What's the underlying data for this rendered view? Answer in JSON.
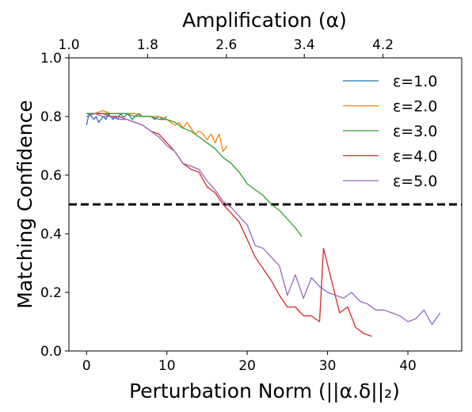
{
  "chart_data": {
    "type": "line",
    "xlabel": "Perturbation Norm (||α.δ||₂)",
    "ylabel": "Matching Confidence",
    "top_xlabel": "Amplification (α)",
    "xlim": [
      -2.2,
      46.7
    ],
    "ylim": [
      0.0,
      1.0
    ],
    "x_ticks": [
      0,
      10,
      20,
      30,
      40
    ],
    "x_tick_labels": [
      "0",
      "10",
      "20",
      "30",
      "40"
    ],
    "y_ticks": [
      0.0,
      0.2,
      0.4,
      0.6,
      0.8,
      1.0
    ],
    "y_tick_labels": [
      "0.0",
      "0.2",
      "0.4",
      "0.6",
      "0.8",
      "1.0"
    ],
    "top_ticks": [
      1.0,
      1.8,
      2.6,
      3.4,
      4.2
    ],
    "top_tick_labels": [
      "1.0",
      "1.8",
      "2.6",
      "3.4",
      "4.2"
    ],
    "top_tick_positions": [
      -2.2,
      7.6,
      17.4,
      27.1,
      36.9
    ],
    "grid": false,
    "legend_position": "top-right",
    "reference_line": {
      "y": 0.5,
      "style": "dashed",
      "color": "#000000"
    },
    "series": [
      {
        "name": "ε=1.0",
        "color": "#1f77b4",
        "x": [
          0,
          0.3,
          0.6,
          0.9,
          1.2,
          1.5,
          1.8,
          2.1,
          2.4,
          2.7,
          3.0,
          3.3,
          3.6,
          3.9,
          4.2,
          4.5,
          4.8,
          5.1,
          5.4,
          5.7,
          6.0,
          6.5,
          7.0,
          7.5,
          8.0,
          8.5,
          9.0,
          9.5,
          10.0
        ],
        "y": [
          0.77,
          0.81,
          0.8,
          0.79,
          0.8,
          0.78,
          0.79,
          0.8,
          0.79,
          0.81,
          0.8,
          0.79,
          0.8,
          0.79,
          0.81,
          0.8,
          0.8,
          0.81,
          0.8,
          0.79,
          0.8,
          0.81,
          0.8,
          0.8,
          0.8,
          0.79,
          0.8,
          0.79,
          0.8
        ]
      },
      {
        "name": "ε=2.0",
        "color": "#ff7f0e",
        "x": [
          0,
          1,
          2,
          3,
          4,
          5,
          6,
          7,
          8,
          9,
          10,
          11,
          11.5,
          12,
          12.5,
          13,
          13.5,
          14,
          14.5,
          15,
          15.5,
          16,
          16.5,
          17,
          17.5
        ],
        "y": [
          0.81,
          0.81,
          0.82,
          0.81,
          0.81,
          0.81,
          0.81,
          0.8,
          0.8,
          0.8,
          0.79,
          0.77,
          0.78,
          0.76,
          0.78,
          0.76,
          0.74,
          0.75,
          0.74,
          0.72,
          0.74,
          0.71,
          0.74,
          0.68,
          0.7
        ]
      },
      {
        "name": "ε=3.0",
        "color": "#2ca02c",
        "x": [
          0,
          1,
          2,
          3,
          4,
          5,
          6,
          7,
          8,
          9,
          10,
          11,
          12,
          13,
          14,
          15,
          16,
          17,
          18,
          19,
          20,
          21,
          22,
          23,
          24,
          25,
          26,
          26.8
        ],
        "y": [
          0.81,
          0.81,
          0.81,
          0.81,
          0.81,
          0.81,
          0.8,
          0.8,
          0.8,
          0.79,
          0.79,
          0.78,
          0.76,
          0.75,
          0.73,
          0.71,
          0.69,
          0.66,
          0.64,
          0.61,
          0.57,
          0.55,
          0.53,
          0.5,
          0.48,
          0.45,
          0.42,
          0.39
        ]
      },
      {
        "name": "ε=4.0",
        "color": "#d62728",
        "x": [
          0,
          1,
          2,
          3,
          4,
          5,
          6,
          7,
          8,
          9,
          10,
          11,
          12,
          13,
          14,
          15,
          16,
          17,
          18,
          19,
          20,
          21,
          22,
          23,
          24,
          25,
          26,
          27,
          28,
          29,
          29.5,
          30.5,
          31.5,
          32.5,
          33.5,
          34.5,
          35.5
        ],
        "y": [
          0.8,
          0.81,
          0.81,
          0.8,
          0.8,
          0.79,
          0.78,
          0.77,
          0.75,
          0.74,
          0.71,
          0.68,
          0.64,
          0.62,
          0.61,
          0.56,
          0.54,
          0.5,
          0.47,
          0.44,
          0.38,
          0.32,
          0.28,
          0.24,
          0.19,
          0.15,
          0.15,
          0.12,
          0.12,
          0.1,
          0.35,
          0.24,
          0.13,
          0.15,
          0.08,
          0.06,
          0.05
        ]
      },
      {
        "name": "ε=5.0",
        "color": "#9467bd",
        "x": [
          0,
          1,
          2,
          3,
          4,
          5,
          6,
          7,
          8,
          9,
          10,
          11,
          12,
          13,
          14,
          15,
          16,
          17,
          18,
          19,
          20,
          21,
          22,
          23,
          24,
          25,
          26,
          27,
          28,
          29,
          30,
          31,
          32,
          33,
          34,
          35,
          36,
          37,
          38,
          39,
          40,
          41,
          42,
          43,
          44
        ],
        "y": [
          0.8,
          0.81,
          0.8,
          0.8,
          0.79,
          0.79,
          0.78,
          0.77,
          0.75,
          0.73,
          0.7,
          0.68,
          0.64,
          0.63,
          0.62,
          0.58,
          0.55,
          0.51,
          0.49,
          0.46,
          0.43,
          0.36,
          0.35,
          0.32,
          0.29,
          0.19,
          0.26,
          0.18,
          0.25,
          0.22,
          0.2,
          0.19,
          0.18,
          0.2,
          0.17,
          0.16,
          0.14,
          0.14,
          0.13,
          0.12,
          0.1,
          0.11,
          0.14,
          0.09,
          0.13
        ]
      }
    ]
  }
}
